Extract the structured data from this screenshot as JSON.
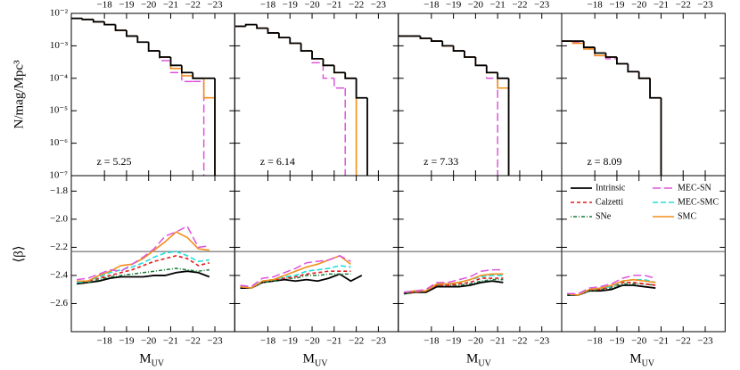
{
  "chart_data": [
    {
      "type": "histogram",
      "log_y": true,
      "y_label": "N/mag/Mpc³",
      "xlim": [
        -16.5,
        -23.9
      ],
      "ylim": [
        1e-07,
        0.01
      ],
      "xticks": [
        {
          "value": -18,
          "label": "−18"
        },
        {
          "value": -19,
          "label": "−19"
        },
        {
          "value": -20,
          "label": "−20"
        },
        {
          "value": -21,
          "label": "−21"
        },
        {
          "value": -22,
          "label": "−22"
        },
        {
          "value": -23,
          "label": "−23"
        }
      ],
      "yticks": [
        {
          "value": 0.01,
          "label": "10⁻²"
        },
        {
          "value": 0.001,
          "label": "10⁻³"
        },
        {
          "value": 0.0001,
          "label": "10⁻⁴"
        },
        {
          "value": 1e-05,
          "label": "10⁻⁵"
        },
        {
          "value": 1e-06,
          "label": "10⁻⁶"
        },
        {
          "value": 1e-07,
          "label": "10⁻⁷"
        }
      ],
      "panels": [
        {
          "annotation": "z = 5.25",
          "bins": [
            -16.5,
            -17,
            -17.5,
            -18,
            -18.5,
            -19,
            -19.5,
            -20,
            -20.5,
            -21,
            -21.5,
            -22,
            -22.5,
            -23
          ],
          "series": [
            {
              "name": "Intrinsic",
              "values": [
                0.007,
                0.0065,
                0.0055,
                0.0045,
                0.003,
                0.002,
                0.0013,
                0.0007,
                0.00045,
                0.00025,
                0.00015,
                0.0001,
                0.0001
              ]
            },
            {
              "name": "SMC",
              "values": [
                0.007,
                0.0065,
                0.0055,
                0.0045,
                0.003,
                0.002,
                0.0013,
                0.0007,
                0.00045,
                0.0002,
                0.00012,
                0.0001,
                2.5e-05
              ]
            },
            {
              "name": "MEC-SN",
              "values": [
                0.007,
                0.0065,
                0.0055,
                0.0045,
                0.003,
                0.002,
                0.0013,
                0.0007,
                0.00035,
                0.00015,
                8e-05,
                8e-05,
                null
              ]
            }
          ]
        },
        {
          "annotation": "z = 6.14",
          "bins": [
            -16.5,
            -17,
            -17.5,
            -18,
            -18.5,
            -19,
            -19.5,
            -20,
            -20.5,
            -21,
            -21.5,
            -22,
            -22.5
          ],
          "series": [
            {
              "name": "Intrinsic",
              "values": [
                0.004,
                0.0045,
                0.0035,
                0.0025,
                0.0018,
                0.0012,
                0.0007,
                0.0004,
                0.00025,
                0.00015,
                0.0001,
                2.5e-05
              ]
            },
            {
              "name": "SMC",
              "values": [
                0.004,
                0.0045,
                0.0035,
                0.0025,
                0.0018,
                0.0012,
                0.0007,
                0.0004,
                0.00025,
                0.00015,
                0.0001,
                null
              ]
            },
            {
              "name": "MEC-SN",
              "values": [
                0.004,
                0.0045,
                0.0035,
                0.0025,
                0.0018,
                0.0012,
                0.0007,
                0.0003,
                0.0001,
                5e-05,
                null,
                null
              ]
            }
          ]
        },
        {
          "annotation": "z = 7.33",
          "bins": [
            -16.5,
            -17,
            -17.5,
            -18,
            -18.5,
            -19,
            -19.5,
            -20,
            -20.5,
            -21,
            -21.5
          ],
          "series": [
            {
              "name": "Intrinsic",
              "values": [
                0.002,
                0.002,
                0.0017,
                0.0014,
                0.001,
                0.0007,
                0.00045,
                0.00025,
                0.00015,
                0.0001
              ]
            },
            {
              "name": "SMC",
              "values": [
                0.002,
                0.002,
                0.0017,
                0.0014,
                0.001,
                0.0007,
                0.00045,
                0.00025,
                0.00015,
                5e-05
              ]
            },
            {
              "name": "MEC-SN",
              "values": [
                0.002,
                0.002,
                0.0017,
                0.0014,
                0.001,
                0.0007,
                0.00045,
                0.00025,
                0.0001,
                null
              ]
            }
          ]
        },
        {
          "annotation": "z = 8.09",
          "bins": [
            -16.5,
            -17,
            -17.5,
            -18,
            -18.5,
            -19,
            -19.5,
            -20,
            -20.5,
            -21
          ],
          "series": [
            {
              "name": "Intrinsic",
              "values": [
                0.0014,
                0.0014,
                0.0009,
                0.0006,
                0.00045,
                0.00028,
                0.00016,
                0.0001,
                2.5e-05
              ]
            },
            {
              "name": "SMC",
              "values": [
                0.0014,
                0.0012,
                0.0008,
                0.0005,
                0.00045,
                0.00028,
                0.00016,
                0.0001,
                2.5e-05
              ]
            },
            {
              "name": "MEC-SN",
              "values": [
                0.0014,
                0.0013,
                0.0008,
                0.0005,
                0.0004,
                0.00028,
                0.00016,
                0.0001,
                2.5e-05
              ]
            }
          ]
        }
      ]
    },
    {
      "type": "line",
      "y_label": "⟨β⟩",
      "x_label": "M",
      "x_label_sub": "UV",
      "hline": -2.23,
      "xlim": [
        -16.5,
        -23.9
      ],
      "ylim": [
        -2.8,
        -1.69
      ],
      "xticks": [
        {
          "value": -18,
          "label": "−18"
        },
        {
          "value": -19,
          "label": "−19"
        },
        {
          "value": -20,
          "label": "−20"
        },
        {
          "value": -21,
          "label": "−21"
        },
        {
          "value": -22,
          "label": "−22"
        },
        {
          "value": -23,
          "label": "−23"
        }
      ],
      "yticks": [
        {
          "value": -1.8,
          "label": "−1.8"
        },
        {
          "value": -2.0,
          "label": "−2.0"
        },
        {
          "value": -2.2,
          "label": "−2.2"
        },
        {
          "value": -2.4,
          "label": "−2.4"
        },
        {
          "value": -2.6,
          "label": "−2.6"
        }
      ],
      "legend": [
        {
          "name": "Intrinsic",
          "color": "#000000",
          "dash": "none",
          "width": 1.8
        },
        {
          "name": "Calzetti",
          "color": "#e41a1c",
          "dash": "4,3",
          "width": 1.6
        },
        {
          "name": "SNe",
          "color": "#1b7a3a",
          "dash": "1,2,4,2",
          "width": 1.5
        },
        {
          "name": "MEC-SN",
          "color": "#dd55dd",
          "dash": "9,4",
          "width": 1.5
        },
        {
          "name": "MEC-SMC",
          "color": "#22dddd",
          "dash": "6,3",
          "width": 1.6
        },
        {
          "name": "SMC",
          "color": "#f28e1c",
          "dash": "none",
          "width": 1.6
        }
      ],
      "panels": [
        {
          "x": [
            -16.75,
            -17.25,
            -17.75,
            -18.25,
            -18.75,
            -19.25,
            -19.75,
            -20.25,
            -20.75,
            -21.25,
            -21.75,
            -22.25,
            -22.75
          ],
          "series": [
            {
              "name": "Intrinsic",
              "values": [
                -2.46,
                -2.45,
                -2.44,
                -2.42,
                -2.41,
                -2.41,
                -2.41,
                -2.4,
                -2.4,
                -2.38,
                -2.37,
                -2.38,
                -2.41
              ]
            },
            {
              "name": "SNe",
              "values": [
                -2.45,
                -2.45,
                -2.43,
                -2.41,
                -2.4,
                -2.39,
                -2.38,
                -2.37,
                -2.36,
                -2.35,
                -2.36,
                -2.37,
                -2.36
              ]
            },
            {
              "name": "Calzetti",
              "values": [
                -2.45,
                -2.44,
                -2.42,
                -2.4,
                -2.38,
                -2.36,
                -2.33,
                -2.3,
                -2.28,
                -2.26,
                -2.28,
                -2.33,
                -2.31
              ]
            },
            {
              "name": "MEC-SMC",
              "values": [
                -2.45,
                -2.44,
                -2.41,
                -2.38,
                -2.36,
                -2.34,
                -2.31,
                -2.27,
                -2.24,
                -2.23,
                -2.26,
                -2.3,
                -2.29
              ]
            },
            {
              "name": "SMC",
              "values": [
                -2.44,
                -2.44,
                -2.4,
                -2.37,
                -2.33,
                -2.32,
                -2.28,
                -2.22,
                -2.16,
                -2.09,
                -2.13,
                -2.21,
                -2.22
              ]
            },
            {
              "name": "MEC-SN",
              "values": [
                -2.43,
                -2.42,
                -2.39,
                -2.36,
                -2.37,
                -2.32,
                -2.27,
                -2.21,
                -2.12,
                -2.09,
                -2.05,
                -2.2,
                -2.19
              ]
            }
          ]
        },
        {
          "x": [
            -16.75,
            -17.25,
            -17.75,
            -18.25,
            -18.75,
            -19.25,
            -19.75,
            -20.25,
            -20.75,
            -21.25,
            -21.75,
            -22.25
          ],
          "series": [
            {
              "name": "Intrinsic",
              "values": [
                -2.49,
                -2.49,
                -2.45,
                -2.44,
                -2.43,
                -2.44,
                -2.43,
                -2.44,
                -2.42,
                -2.39,
                -2.44,
                -2.4
              ]
            },
            {
              "name": "SNe",
              "values": [
                -2.48,
                -2.49,
                -2.45,
                -2.44,
                -2.42,
                -2.42,
                -2.4,
                -2.4,
                -2.39,
                -2.39,
                -2.39,
                null
              ]
            },
            {
              "name": "Calzetti",
              "values": [
                -2.48,
                -2.49,
                -2.44,
                -2.43,
                -2.42,
                -2.41,
                -2.39,
                -2.38,
                -2.37,
                -2.37,
                -2.37,
                null
              ]
            },
            {
              "name": "MEC-SMC",
              "values": [
                -2.48,
                -2.49,
                -2.44,
                -2.43,
                -2.41,
                -2.4,
                -2.37,
                -2.36,
                -2.35,
                -2.33,
                -2.34,
                null
              ]
            },
            {
              "name": "SMC",
              "values": [
                -2.48,
                -2.49,
                -2.44,
                -2.43,
                -2.4,
                -2.37,
                -2.34,
                -2.32,
                -2.29,
                -2.26,
                -2.32,
                null
              ]
            },
            {
              "name": "MEC-SN",
              "values": [
                -2.47,
                -2.48,
                -2.42,
                -2.41,
                -2.38,
                -2.35,
                -2.31,
                -2.3,
                -2.29,
                -2.26,
                -2.3,
                null
              ]
            }
          ]
        },
        {
          "x": [
            -16.75,
            -17.25,
            -17.75,
            -18.25,
            -18.75,
            -19.25,
            -19.75,
            -20.25,
            -20.75,
            -21.25
          ],
          "series": [
            {
              "name": "Intrinsic",
              "values": [
                -2.53,
                -2.52,
                -2.52,
                -2.48,
                -2.48,
                -2.48,
                -2.47,
                -2.45,
                -2.44,
                -2.45
              ]
            },
            {
              "name": "SNe",
              "values": [
                -2.53,
                -2.52,
                -2.51,
                -2.47,
                -2.47,
                -2.47,
                -2.46,
                -2.44,
                -2.43,
                -2.43
              ]
            },
            {
              "name": "Calzetti",
              "values": [
                -2.52,
                -2.52,
                -2.51,
                -2.47,
                -2.47,
                -2.46,
                -2.45,
                -2.42,
                -2.42,
                -2.42
              ]
            },
            {
              "name": "MEC-SMC",
              "values": [
                -2.52,
                -2.51,
                -2.51,
                -2.46,
                -2.46,
                -2.45,
                -2.43,
                -2.41,
                -2.4,
                -2.4
              ]
            },
            {
              "name": "SMC",
              "values": [
                -2.52,
                -2.51,
                -2.51,
                -2.46,
                -2.46,
                -2.45,
                -2.43,
                -2.4,
                -2.39,
                -2.39
              ]
            },
            {
              "name": "MEC-SN",
              "values": [
                -2.52,
                -2.51,
                -2.5,
                -2.45,
                -2.45,
                -2.43,
                -2.41,
                -2.37,
                -2.36,
                -2.36
              ]
            }
          ]
        },
        {
          "x": [
            -16.75,
            -17.25,
            -17.75,
            -18.25,
            -18.75,
            -19.25,
            -19.75,
            -20.25,
            -20.75
          ],
          "series": [
            {
              "name": "Intrinsic",
              "values": [
                -2.54,
                -2.54,
                -2.51,
                -2.51,
                -2.5,
                -2.47,
                -2.47,
                -2.48,
                -2.49
              ]
            },
            {
              "name": "SNe",
              "values": [
                -2.54,
                -2.54,
                -2.51,
                -2.5,
                -2.49,
                -2.46,
                -2.46,
                -2.46,
                -2.47
              ]
            },
            {
              "name": "Calzetti",
              "values": [
                -2.53,
                -2.54,
                -2.5,
                -2.5,
                -2.48,
                -2.45,
                -2.45,
                -2.46,
                -2.47
              ]
            },
            {
              "name": "MEC-SMC",
              "values": [
                -2.53,
                -2.54,
                -2.5,
                -2.49,
                -2.48,
                -2.44,
                -2.43,
                -2.43,
                -2.45
              ]
            },
            {
              "name": "SMC",
              "values": [
                -2.53,
                -2.54,
                -2.5,
                -2.49,
                -2.47,
                -2.44,
                -2.43,
                -2.44,
                -2.45
              ]
            },
            {
              "name": "MEC-SN",
              "values": [
                -2.53,
                -2.53,
                -2.49,
                -2.48,
                -2.46,
                -2.42,
                -2.4,
                -2.4,
                -2.42
              ]
            }
          ]
        }
      ]
    }
  ]
}
